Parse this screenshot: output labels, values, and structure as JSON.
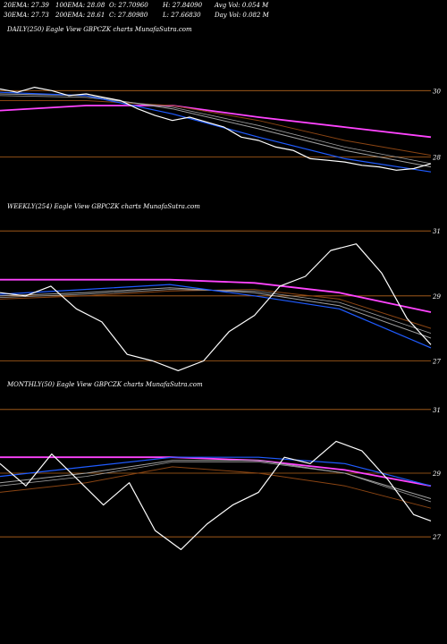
{
  "header": {
    "row1": [
      "20EMA: 27.39",
      "100EMA: 28.08",
      "O: 27.70960",
      "H: 27.84090",
      "Avg Vol: 0.054  M"
    ],
    "row2": [
      "30EMA: 27.73",
      "200EMA: 28.61",
      "C: 27.80980",
      "L: 27.66830",
      "Day Vol: 0.082  M"
    ]
  },
  "colors": {
    "background": "#000000",
    "price": "#ffffff",
    "ema_fast": "#1f5bff",
    "ema_grey": "#a0a0a0",
    "ema_brown": "#8b4513",
    "ema_magenta": "#ff44ff",
    "gridline": "#b5651d"
  },
  "chart_data": [
    {
      "type": "line",
      "title": "DAILY(250) Eagle  View  GBPCZK charts MunafaSutra.com",
      "y_ticks": [
        {
          "label": "30",
          "value": 30
        },
        {
          "label": "28",
          "value": 28
        }
      ],
      "ylim": [
        26.8,
        31.6
      ],
      "grid": "horizontal",
      "series": [
        {
          "role": "price",
          "x": [
            0,
            10,
            20,
            30,
            40,
            50,
            60,
            70,
            80,
            90,
            100,
            110,
            120,
            130,
            140,
            150,
            160,
            170,
            180,
            190,
            200,
            210,
            220,
            230,
            240,
            250
          ],
          "values": [
            30.05,
            29.95,
            30.1,
            30.0,
            29.85,
            29.9,
            29.8,
            29.7,
            29.45,
            29.25,
            29.1,
            29.2,
            29.05,
            28.9,
            28.6,
            28.5,
            28.3,
            28.2,
            27.95,
            27.9,
            27.85,
            27.75,
            27.7,
            27.6,
            27.65,
            27.8
          ]
        },
        {
          "role": "ema_fast",
          "x": [
            0,
            50,
            100,
            150,
            200,
            250
          ],
          "values": [
            29.95,
            29.85,
            29.3,
            28.6,
            27.95,
            27.55
          ]
        },
        {
          "role": "ema_grey",
          "x": [
            0,
            50,
            100,
            150,
            200,
            250
          ],
          "values": [
            29.9,
            29.85,
            29.45,
            28.85,
            28.2,
            27.7
          ]
        },
        {
          "role": "ema_grey2",
          "x": [
            0,
            50,
            100,
            150,
            200,
            250
          ],
          "values": [
            29.85,
            29.8,
            29.5,
            28.95,
            28.3,
            27.8
          ]
        },
        {
          "role": "ema_brown",
          "x": [
            0,
            50,
            100,
            150,
            200,
            250
          ],
          "values": [
            29.7,
            29.7,
            29.55,
            29.1,
            28.5,
            28.05
          ]
        },
        {
          "role": "ema_magenta",
          "x": [
            0,
            50,
            100,
            150,
            200,
            250
          ],
          "values": [
            29.4,
            29.55,
            29.55,
            29.2,
            28.9,
            28.6
          ]
        }
      ]
    },
    {
      "type": "line",
      "title": "WEEKLY(254) Eagle  View  GBPCZK charts MunafaSutra.com",
      "y_ticks": [
        {
          "label": "31",
          "value": 31
        },
        {
          "label": "29",
          "value": 29
        },
        {
          "label": "27",
          "value": 27
        }
      ],
      "ylim": [
        26.6,
        31.5
      ],
      "grid": "horizontal",
      "series": [
        {
          "role": "price",
          "x": [
            0,
            15,
            30,
            45,
            60,
            75,
            90,
            105,
            120,
            135,
            150,
            165,
            180,
            195,
            210,
            225,
            240,
            254
          ],
          "values": [
            29.1,
            29.0,
            29.3,
            28.6,
            28.2,
            27.2,
            27.0,
            26.7,
            27.0,
            27.9,
            28.4,
            29.3,
            29.6,
            30.4,
            30.6,
            29.7,
            28.3,
            27.5
          ]
        },
        {
          "role": "ema_fast",
          "x": [
            0,
            50,
            100,
            150,
            200,
            254
          ],
          "values": [
            29.05,
            29.2,
            29.35,
            29.0,
            28.6,
            27.4
          ]
        },
        {
          "role": "ema_grey",
          "x": [
            0,
            50,
            100,
            150,
            200,
            254
          ],
          "values": [
            29.0,
            29.1,
            29.25,
            29.1,
            28.7,
            27.7
          ]
        },
        {
          "role": "ema_grey2",
          "x": [
            0,
            50,
            100,
            150,
            200,
            254
          ],
          "values": [
            28.95,
            29.05,
            29.2,
            29.15,
            28.8,
            27.85
          ]
        },
        {
          "role": "ema_brown",
          "x": [
            0,
            50,
            100,
            150,
            200,
            254
          ],
          "values": [
            28.9,
            29.0,
            29.15,
            29.2,
            28.9,
            28.0
          ]
        },
        {
          "role": "ema_magenta",
          "x": [
            0,
            50,
            100,
            150,
            200,
            254
          ],
          "values": [
            29.5,
            29.5,
            29.5,
            29.4,
            29.1,
            28.5
          ]
        }
      ]
    },
    {
      "type": "line",
      "title": "MONTHLY(50) Eagle  View  GBPCZK charts MunafaSutra.com",
      "y_ticks": [
        {
          "label": "31",
          "value": 31
        },
        {
          "label": "29",
          "value": 29
        },
        {
          "label": "27",
          "value": 27
        }
      ],
      "ylim": [
        26.5,
        31.5
      ],
      "grid": "horizontal",
      "series": [
        {
          "role": "price",
          "x": [
            0,
            3,
            6,
            9,
            12,
            15,
            18,
            21,
            24,
            27,
            30,
            33,
            36,
            39,
            42,
            45,
            48,
            50
          ],
          "values": [
            29.3,
            28.6,
            29.6,
            28.8,
            28.0,
            28.7,
            27.2,
            26.6,
            27.4,
            28.0,
            28.4,
            29.5,
            29.3,
            30.0,
            29.7,
            28.8,
            27.7,
            27.5
          ]
        },
        {
          "role": "ema_fast",
          "x": [
            0,
            10,
            20,
            30,
            40,
            50
          ],
          "values": [
            28.9,
            29.2,
            29.5,
            29.5,
            29.3,
            28.6
          ]
        },
        {
          "role": "ema_grey",
          "x": [
            0,
            10,
            20,
            30,
            40,
            50
          ],
          "values": [
            28.7,
            29.0,
            29.4,
            29.4,
            29.0,
            28.2
          ]
        },
        {
          "role": "ema_grey2",
          "x": [
            0,
            10,
            20,
            30,
            40,
            50
          ],
          "values": [
            28.6,
            28.9,
            29.35,
            29.35,
            29.0,
            28.1
          ]
        },
        {
          "role": "ema_brown",
          "x": [
            0,
            10,
            20,
            30,
            40,
            50
          ],
          "values": [
            28.4,
            28.7,
            29.2,
            29.0,
            28.6,
            27.9
          ]
        },
        {
          "role": "ema_magenta",
          "x": [
            0,
            10,
            20,
            30,
            40,
            50
          ],
          "values": [
            29.5,
            29.5,
            29.5,
            29.4,
            29.1,
            28.6
          ]
        }
      ]
    }
  ]
}
